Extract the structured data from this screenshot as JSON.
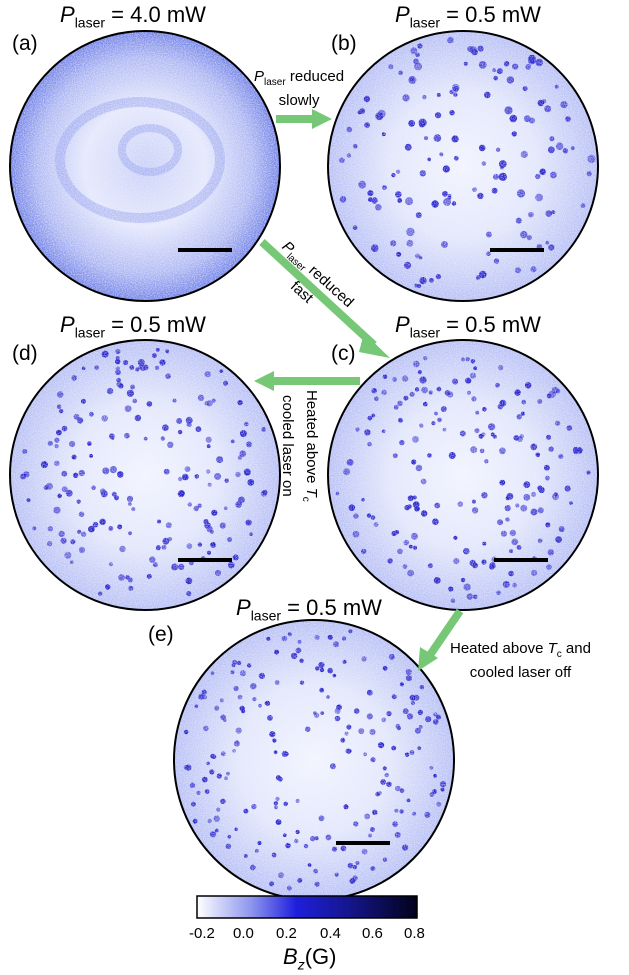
{
  "panels": {
    "a": {
      "label": "(a)",
      "p_symbol": "P",
      "p_sub": "laser",
      "p_value": "= 4.0 mW"
    },
    "b": {
      "label": "(b)",
      "p_symbol": "P",
      "p_sub": "laser",
      "p_value": "= 0.5 mW"
    },
    "c": {
      "label": "(c)",
      "p_symbol": "P",
      "p_sub": "laser",
      "p_value": "= 0.5 mW"
    },
    "d": {
      "label": "(d)",
      "p_symbol": "P",
      "p_sub": "laser",
      "p_value": "= 0.5 mW"
    },
    "e": {
      "label": "(e)",
      "p_symbol": "P",
      "p_sub": "laser",
      "p_value": "= 0.5 mW"
    }
  },
  "arrows": {
    "a_to_b": {
      "symbol": "P",
      "sub": "laser",
      "text1": "reduced",
      "text2": "slowly"
    },
    "a_to_c": {
      "symbol": "P",
      "sub": "laser",
      "text1": "reduced",
      "text2": "fast"
    },
    "c_to_d": {
      "line1": "Heated above",
      "tc_symbol": "T",
      "tc_sub": "c",
      "line2": "cooled laser on"
    },
    "c_to_e": {
      "line1": "Heated above",
      "tc_symbol": "T",
      "tc_sub": "c",
      "and": "and",
      "line2": "cooled laser off"
    }
  },
  "colorbar": {
    "ticks": [
      "-0.2",
      "0.0",
      "0.2",
      "0.4",
      "0.6",
      "0.8"
    ],
    "label_symbol": "B",
    "label_sub": "z",
    "label_unit": "(G)"
  },
  "colors": {
    "arrow": "#76c776",
    "vortex": "#1a14c8",
    "background_field": "#dfe3fb",
    "scalebar": "#000000"
  }
}
